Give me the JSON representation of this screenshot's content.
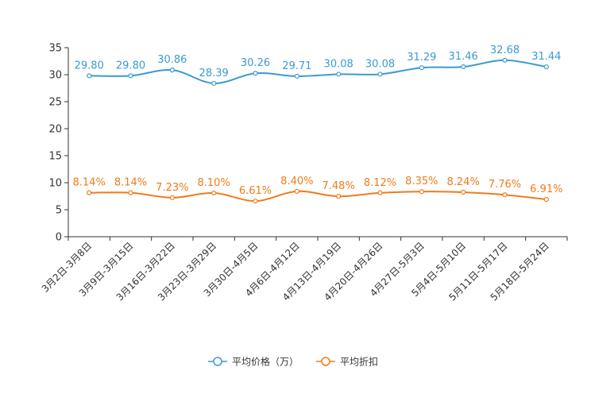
{
  "chart_data": {
    "type": "line",
    "title": "",
    "xlabel": "",
    "ylabel": "",
    "ylim": [
      0,
      35
    ],
    "yticks": [
      0,
      5,
      10,
      15,
      20,
      25,
      30,
      35
    ],
    "grid": false,
    "legend_position": "bottom",
    "categories": [
      "3月2日-3月8日",
      "3月9日-3月15日",
      "3月16日-3月22日",
      "3月23日-3月29日",
      "3月30日-4月5日",
      "4月6日-4月12日",
      "4月13日-4月19日",
      "4月20日-4月26日",
      "4月27日-5月3日",
      "5月4日-5月10日",
      "5月11日-5月17日",
      "5月18日-5月24日"
    ],
    "series": [
      {
        "name": "平均价格（万）",
        "color": "#3a9bd0",
        "values": [
          29.8,
          29.8,
          30.86,
          28.39,
          30.26,
          29.71,
          30.08,
          30.08,
          31.29,
          31.46,
          32.68,
          31.44
        ],
        "labels": [
          "29.80",
          "29.80",
          "30.86",
          "28.39",
          "30.26",
          "29.71",
          "30.08",
          "30.08",
          "31.29",
          "31.46",
          "32.68",
          "31.44"
        ]
      },
      {
        "name": "平均折扣",
        "color": "#f07b1a",
        "values": [
          8.14,
          8.14,
          7.23,
          8.1,
          6.61,
          8.4,
          7.48,
          8.12,
          8.35,
          8.24,
          7.76,
          6.91
        ],
        "labels": [
          "8.14%",
          "8.14%",
          "7.23%",
          "8.10%",
          "6.61%",
          "8.40%",
          "7.48%",
          "8.12%",
          "8.35%",
          "8.24%",
          "7.76%",
          "6.91%"
        ]
      }
    ]
  }
}
